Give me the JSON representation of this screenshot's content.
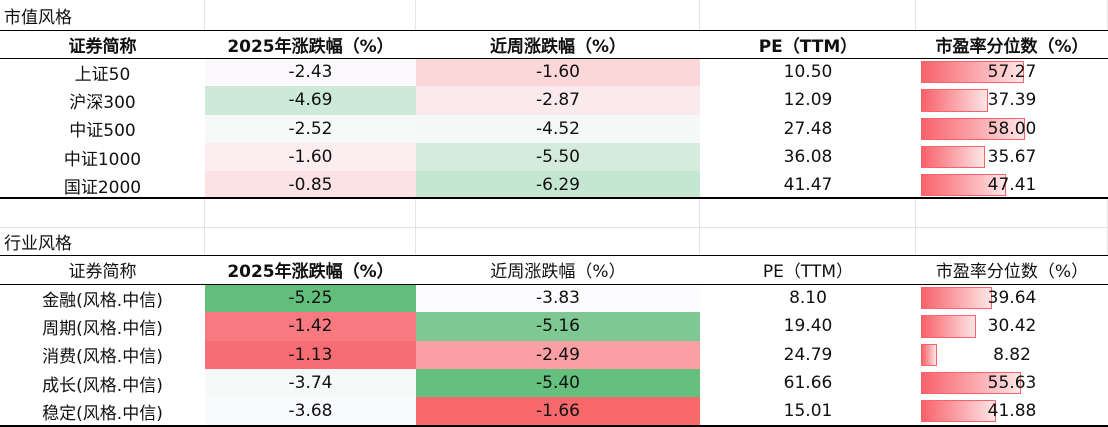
{
  "sections": [
    {
      "title": "市值风格",
      "header_bold": true,
      "headers": [
        "证券简称",
        "2025年涨跌幅（%）",
        "近周涨跌幅（%）",
        "PE（TTM）",
        "市盈率分位数（%）"
      ],
      "rows": [
        {
          "name": "上证50",
          "ytd": "-2.43",
          "week": "-1.60",
          "pe": "10.50",
          "pct": "57.27",
          "ytd_bg": "#fbf9fc",
          "week_bg": "#fbd7da"
        },
        {
          "name": "沪深300",
          "ytd": "-4.69",
          "week": "-2.87",
          "pe": "12.09",
          "pct": "37.39",
          "ytd_bg": "#cde9d7",
          "week_bg": "#fbeaed"
        },
        {
          "name": "中证500",
          "ytd": "-2.52",
          "week": "-4.52",
          "pe": "27.48",
          "pct": "58.00",
          "ytd_bg": "#f6f9f8",
          "week_bg": "#f4f8f6"
        },
        {
          "name": "中证1000",
          "ytd": "-1.60",
          "week": "-5.50",
          "pe": "36.08",
          "pct": "35.67",
          "ytd_bg": "#fbedf0",
          "week_bg": "#d5ecdd"
        },
        {
          "name": "国证2000",
          "ytd": "-0.85",
          "week": "-6.29",
          "pe": "41.47",
          "pct": "47.41",
          "ytd_bg": "#fbe2e5",
          "week_bg": "#c5e6d0"
        }
      ]
    },
    {
      "title": "行业风格",
      "header_bold": false,
      "headers": [
        "证券简称",
        "2025年涨跌幅（%）",
        "近周涨跌幅（%）",
        "PE（TTM）",
        "市盈率分位数（%）"
      ],
      "rows": [
        {
          "name": "金融(风格.中信)",
          "ytd": "-5.25",
          "week": "-3.83",
          "pe": "8.10",
          "pct": "39.64",
          "ytd_bg": "#63be7b",
          "week_bg": "#fcfcff"
        },
        {
          "name": "周期(风格.中信)",
          "ytd": "-1.42",
          "week": "-5.16",
          "pe": "19.40",
          "pct": "30.42",
          "ytd_bg": "#f8797f",
          "week_bg": "#7ec993"
        },
        {
          "name": "消费(风格.中信)",
          "ytd": "-1.13",
          "week": "-2.49",
          "pe": "24.79",
          "pct": "8.82",
          "ytd_bg": "#f86d74",
          "week_bg": "#fa9fa4"
        },
        {
          "name": "成长(风格.中信)",
          "ytd": "-3.74",
          "week": "-5.40",
          "pe": "61.66",
          "pct": "55.63",
          "ytd_bg": "#f5f9f8",
          "week_bg": "#65bf7d"
        },
        {
          "name": "稳定(风格.中信)",
          "ytd": "-3.68",
          "week": "-1.66",
          "pe": "15.01",
          "pct": "41.88",
          "ytd_bg": "#f9fafd",
          "week_bg": "#f8696b"
        }
      ]
    }
  ]
}
